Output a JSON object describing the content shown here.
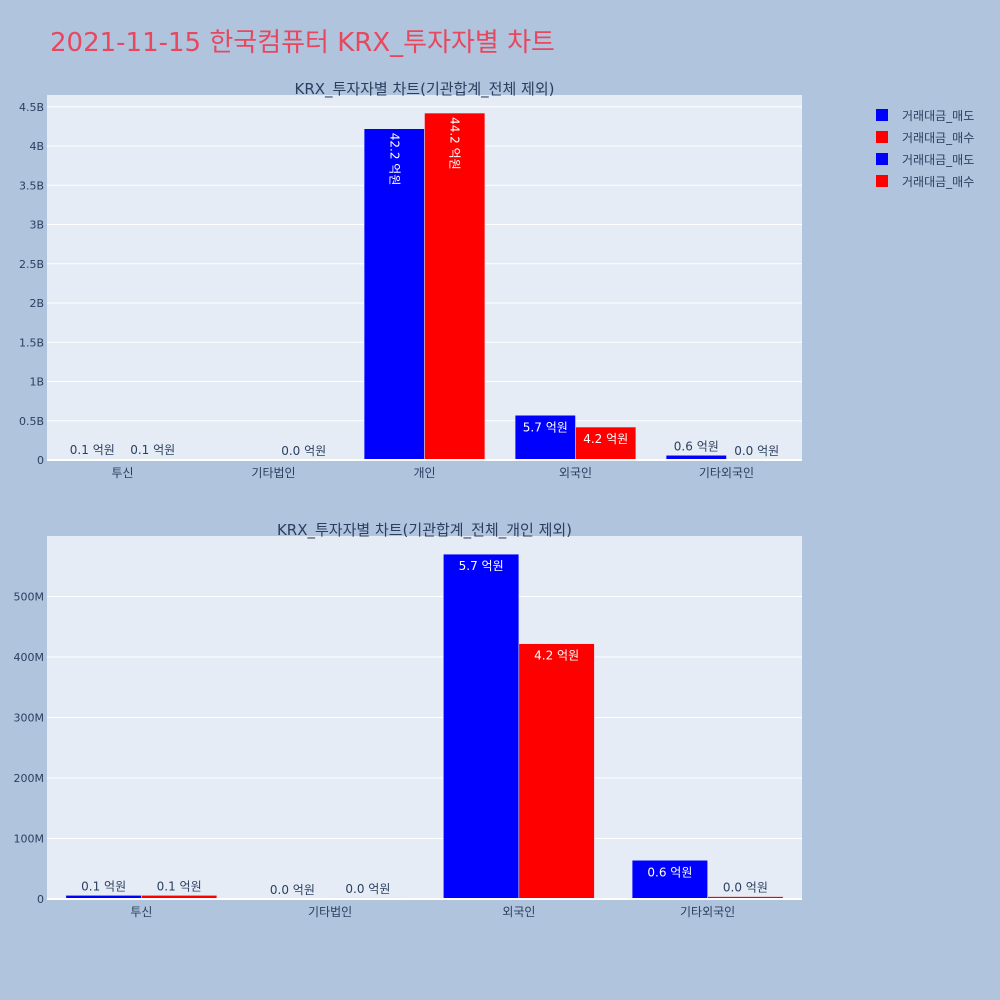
{
  "page": {
    "title": "2021-11-15 한국컴퓨터 KRX_투자자별 차트",
    "title_color": "#e8475e",
    "background": "#b0c4de",
    "plot_background": "#e5ecf6",
    "grid_color": "#ffffff",
    "axis_text_color": "#2a3f5f"
  },
  "legend": {
    "placement": "top-right",
    "items": [
      {
        "label": "거래대금_매도",
        "color": "#0000ff"
      },
      {
        "label": "거래대금_매수",
        "color": "#ff0000"
      },
      {
        "label": "거래대금_매도",
        "color": "#0000ff"
      },
      {
        "label": "거래대금_매수",
        "color": "#ff0000"
      }
    ]
  },
  "chart_data": [
    {
      "type": "bar",
      "title": "KRX_투자자별 차트(기관합계_전체 제외)",
      "categories": [
        "투신",
        "기타법인",
        "개인",
        "외국인",
        "기타외국인"
      ],
      "series": [
        {
          "name": "거래대금_매도",
          "color": "#0000ff",
          "values": [
            10000000,
            0,
            4220000000,
            570000000,
            60000000
          ],
          "labels": [
            "0.1 억원",
            "",
            "42.2 억원",
            "5.7 억원",
            "0.6 억원"
          ]
        },
        {
          "name": "거래대금_매수",
          "color": "#ff0000",
          "values": [
            10000000,
            0,
            4420000000,
            420000000,
            2000000
          ],
          "labels": [
            "0.1 억원",
            "0.0 억원",
            "44.2 억원",
            "4.2 억원",
            "0.0 억원"
          ]
        }
      ],
      "ylim": [
        0,
        4650000000
      ],
      "yticks": [
        0,
        500000000,
        1000000000,
        1500000000,
        2000000000,
        2500000000,
        3000000000,
        3500000000,
        4000000000,
        4500000000
      ],
      "yticklabels": [
        "0",
        "0.5B",
        "1B",
        "1.5B",
        "2B",
        "2.5B",
        "3B",
        "3.5B",
        "4B",
        "4.5B"
      ],
      "grid": true
    },
    {
      "type": "bar",
      "title": "KRX_투자자별 차트(기관합계_전체_개인 제외)",
      "categories": [
        "투신",
        "기타법인",
        "외국인",
        "기타외국인"
      ],
      "series": [
        {
          "name": "거래대금_매도",
          "color": "#0000ff",
          "values": [
            6000000,
            0,
            570000000,
            64000000
          ],
          "labels": [
            "0.1 억원",
            "0.0 억원",
            "5.7 억원",
            "0.6 억원"
          ]
        },
        {
          "name": "거래대금_매수",
          "color": "#ff0000",
          "values": [
            6000000,
            2000000,
            422000000,
            4000000
          ],
          "labels": [
            "0.1 억원",
            "0.0 억원",
            "4.2 억원",
            "0.0 억원"
          ]
        }
      ],
      "ylim": [
        0,
        600000000
      ],
      "yticks": [
        0,
        100000000,
        200000000,
        300000000,
        400000000,
        500000000
      ],
      "yticklabels": [
        "0",
        "100M",
        "200M",
        "300M",
        "400M",
        "500M"
      ],
      "grid": true
    }
  ]
}
